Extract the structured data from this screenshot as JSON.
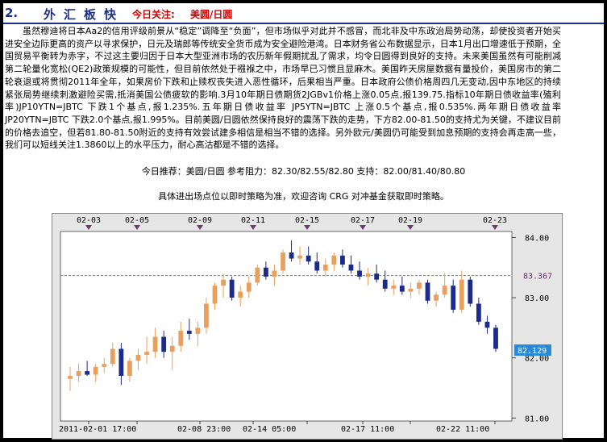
{
  "header": {
    "section_number": "2.",
    "section_title": "外汇板快",
    "focus_label": "今日关注:",
    "focus_value": "美圆/日圆"
  },
  "article": {
    "body": "虽然穆迪将日本Aa2的信用评级前景从“稳定”调降至“负面”，但市场似乎对此并不感冒，而北非及中东政治局势动荡，却使投资者开始买进安全边际更高的资产以寻求保护，日元及瑞郎等传统安全货币成为安全避险港湾。日本财务省公布数据显示，日本1月出口增速低于预期，全国贸易平衡转为赤字，不过这主要归因于日本大型亚洲市场的农历新年假期扰乱了需求，均令日圆得到良好的支持。未来美国虽然有可能削减第二轮量化宽松(QE2)政策规模的可能性，但目前依然处于襁褓之中，市场早已习惯且显麻木。美国昨天房屋数据有量投价，美国房市的第二轮衰退或将贯彻2011年全年，如果房价下跌和止赎权丧失进入恶性循环，后果相当严重。日本政府公债价格周四几无变动,因中东地区的持续紧张局势继续刺激避险买需,抵消美国公债疲软的影响.3月10年期日债期货2JGBv1价格上涨0.05点,报139.75.指标10年期日债收益率(殖利率)JP10YTN=JBTC 下跌1个基点,报1.235%.五年期日债收益率 JP5YTN=JBTC 上涨0.5个基点,报0.535%.两年期日债收益率 JP20YTN=JBTC 下跌2.0个基点,报1.995%。目前美圆/日圆依然保持良好的震荡下跌的走势，下方82.00-81.50的支持尤为关键，不建议目前的价格去追空，但若81.80-81.50附近的支持有效尝试建多相信是相当不错的选择。另外欧元/美圆仍可能受到加息预期的支持会再走高一些，我们可以短线关注1.3860以上的水平压力，耐心高沽都是不错的选择。",
    "recommendation": "今日推荐：美圆/日圆  参考阻力：82.30/82.55/82.80   支持：82.00/81.40/80.80",
    "disclaimer": "具体进出场点位以即时策略为准，欢迎咨询 CRG 对冲基金获取即时策略。"
  },
  "chart_data": {
    "type": "candlestick",
    "top_date_labels": [
      "02-03",
      "02-05",
      "02-09",
      "02-11",
      "02-15",
      "02-17",
      "02-19",
      "02-23"
    ],
    "bottom_date_labels": [
      "2011-02-01 17:00",
      "02-08 23:00",
      "02-14 05:00",
      "02-17 11:00",
      "02-22 11:00"
    ],
    "y_ticks": [
      "84.00",
      "83.00",
      "82.00",
      "81.00"
    ],
    "ylim": [
      80.95,
      84.1
    ],
    "reference_level": 83.367,
    "reference_label": "83.367",
    "last_price": 82.129,
    "last_price_label": "82.129",
    "up_color": "#e8a060",
    "down_color": "#1c2a8c",
    "reference_color": "#7a7a7a",
    "grid": false,
    "candles": [
      {
        "o": 81.65,
        "h": 81.85,
        "l": 81.45,
        "c": 81.7
      },
      {
        "o": 81.7,
        "h": 81.9,
        "l": 81.6,
        "c": 81.78
      },
      {
        "o": 81.78,
        "h": 81.95,
        "l": 81.7,
        "c": 81.72
      },
      {
        "o": 81.72,
        "h": 81.9,
        "l": 81.6,
        "c": 81.85
      },
      {
        "o": 81.85,
        "h": 82.0,
        "l": 81.75,
        "c": 81.9
      },
      {
        "o": 81.9,
        "h": 82.25,
        "l": 81.85,
        "c": 82.15
      },
      {
        "o": 82.15,
        "h": 82.25,
        "l": 81.55,
        "c": 81.7
      },
      {
        "o": 81.7,
        "h": 82.0,
        "l": 81.6,
        "c": 81.95
      },
      {
        "o": 81.95,
        "h": 82.15,
        "l": 81.8,
        "c": 82.05
      },
      {
        "o": 82.05,
        "h": 82.35,
        "l": 81.9,
        "c": 82.1
      },
      {
        "o": 82.1,
        "h": 82.5,
        "l": 82.0,
        "c": 82.35
      },
      {
        "o": 82.35,
        "h": 82.45,
        "l": 82.0,
        "c": 82.1
      },
      {
        "o": 82.1,
        "h": 82.35,
        "l": 81.8,
        "c": 82.2
      },
      {
        "o": 82.2,
        "h": 82.6,
        "l": 82.1,
        "c": 82.45
      },
      {
        "o": 82.45,
        "h": 82.65,
        "l": 82.3,
        "c": 82.4
      },
      {
        "o": 82.4,
        "h": 82.6,
        "l": 82.2,
        "c": 82.5
      },
      {
        "o": 82.5,
        "h": 83.0,
        "l": 82.4,
        "c": 82.9
      },
      {
        "o": 82.9,
        "h": 83.25,
        "l": 82.8,
        "c": 83.2
      },
      {
        "o": 83.2,
        "h": 83.4,
        "l": 83.0,
        "c": 83.3
      },
      {
        "o": 83.3,
        "h": 83.35,
        "l": 82.95,
        "c": 83.0
      },
      {
        "o": 83.0,
        "h": 83.2,
        "l": 82.85,
        "c": 83.1
      },
      {
        "o": 83.1,
        "h": 83.35,
        "l": 83.0,
        "c": 83.25
      },
      {
        "o": 83.25,
        "h": 83.55,
        "l": 83.2,
        "c": 83.5
      },
      {
        "o": 83.5,
        "h": 83.6,
        "l": 83.3,
        "c": 83.35
      },
      {
        "o": 83.35,
        "h": 83.55,
        "l": 83.2,
        "c": 83.45
      },
      {
        "o": 83.45,
        "h": 83.8,
        "l": 83.4,
        "c": 83.75
      },
      {
        "o": 83.75,
        "h": 83.95,
        "l": 83.6,
        "c": 83.65
      },
      {
        "o": 83.65,
        "h": 83.85,
        "l": 83.55,
        "c": 83.7
      },
      {
        "o": 83.7,
        "h": 83.85,
        "l": 83.55,
        "c": 83.6
      },
      {
        "o": 83.6,
        "h": 83.75,
        "l": 83.4,
        "c": 83.45
      },
      {
        "o": 83.45,
        "h": 83.65,
        "l": 83.35,
        "c": 83.55
      },
      {
        "o": 83.55,
        "h": 83.75,
        "l": 83.45,
        "c": 83.7
      },
      {
        "o": 83.7,
        "h": 83.8,
        "l": 83.5,
        "c": 83.55
      },
      {
        "o": 83.55,
        "h": 83.7,
        "l": 83.4,
        "c": 83.45
      },
      {
        "o": 83.45,
        "h": 83.6,
        "l": 83.3,
        "c": 83.35
      },
      {
        "o": 83.35,
        "h": 83.5,
        "l": 83.2,
        "c": 83.4
      },
      {
        "o": 83.4,
        "h": 83.55,
        "l": 83.25,
        "c": 83.3
      },
      {
        "o": 83.3,
        "h": 83.45,
        "l": 83.1,
        "c": 83.15
      },
      {
        "o": 83.15,
        "h": 83.3,
        "l": 83.05,
        "c": 83.2
      },
      {
        "o": 83.2,
        "h": 83.35,
        "l": 83.05,
        "c": 83.1
      },
      {
        "o": 83.1,
        "h": 83.25,
        "l": 83.0,
        "c": 83.15
      },
      {
        "o": 83.15,
        "h": 83.3,
        "l": 83.05,
        "c": 83.25
      },
      {
        "o": 83.25,
        "h": 83.3,
        "l": 82.9,
        "c": 82.95
      },
      {
        "o": 82.95,
        "h": 83.1,
        "l": 82.85,
        "c": 83.05
      },
      {
        "o": 83.05,
        "h": 83.4,
        "l": 83.0,
        "c": 83.2
      },
      {
        "o": 83.2,
        "h": 83.3,
        "l": 82.75,
        "c": 82.8
      },
      {
        "o": 82.8,
        "h": 83.45,
        "l": 82.75,
        "c": 83.3
      },
      {
        "o": 83.3,
        "h": 83.35,
        "l": 82.85,
        "c": 82.9
      },
      {
        "o": 82.9,
        "h": 83.0,
        "l": 82.55,
        "c": 82.6
      },
      {
        "o": 82.6,
        "h": 82.7,
        "l": 82.4,
        "c": 82.5
      },
      {
        "o": 82.5,
        "h": 82.55,
        "l": 82.1,
        "c": 82.15
      }
    ]
  }
}
